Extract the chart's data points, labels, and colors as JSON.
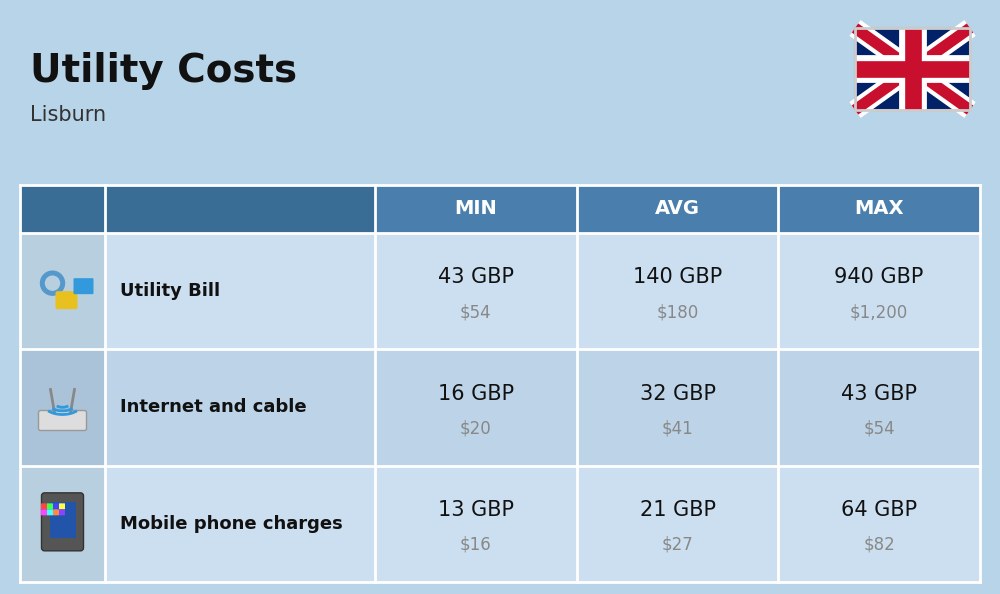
{
  "title": "Utility Costs",
  "subtitle": "Lisburn",
  "background_color": "#b8d4e8",
  "header_color": "#4a7fad",
  "header_dark_color": "#3a6d96",
  "header_text_color": "#ffffff",
  "row_color_odd": "#ccdff0",
  "row_color_even": "#bdd4e8",
  "icon_col_color_odd": "#b8cfe0",
  "icon_col_color_even": "#aac3d8",
  "separator_color": "#ffffff",
  "col_headers": [
    "MIN",
    "AVG",
    "MAX"
  ],
  "rows": [
    {
      "label": "Utility Bill",
      "min_gbp": "43 GBP",
      "min_usd": "$54",
      "avg_gbp": "140 GBP",
      "avg_usd": "$180",
      "max_gbp": "940 GBP",
      "max_usd": "$1,200"
    },
    {
      "label": "Internet and cable",
      "min_gbp": "16 GBP",
      "min_usd": "$20",
      "avg_gbp": "32 GBP",
      "avg_usd": "$41",
      "max_gbp": "43 GBP",
      "max_usd": "$54"
    },
    {
      "label": "Mobile phone charges",
      "min_gbp": "13 GBP",
      "min_usd": "$16",
      "avg_gbp": "21 GBP",
      "avg_usd": "$27",
      "max_gbp": "64 GBP",
      "max_usd": "$82"
    }
  ]
}
